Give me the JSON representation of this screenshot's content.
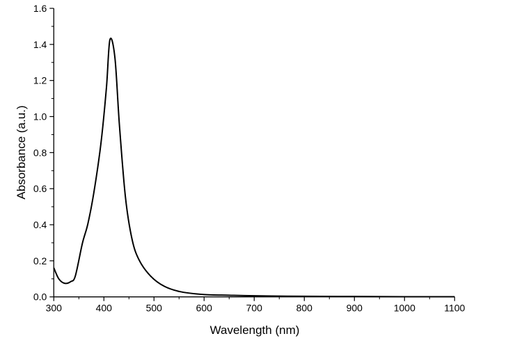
{
  "chart_data": {
    "type": "line",
    "title": "",
    "xlabel": "Wavelength (nm)",
    "ylabel": "Absorbance (a.u.)",
    "xlim": [
      300,
      1100
    ],
    "ylim": [
      0.0,
      1.6
    ],
    "xticks": [
      "300",
      "400",
      "500",
      "600",
      "700",
      "800",
      "900",
      "1000",
      "1100"
    ],
    "yticks": [
      "0.0",
      "0.2",
      "0.4",
      "0.6",
      "0.8",
      "1.0",
      "1.2",
      "1.4",
      "1.6"
    ],
    "grid": false,
    "series": [
      {
        "name": "Absorbance",
        "color": "#000000",
        "x": [
          300,
          310,
          322,
          334,
          343,
          357,
          368,
          380,
          394,
          405,
          412,
          422,
          431,
          443,
          456,
          470,
          493,
          521,
          554,
          600,
          650,
          700,
          800,
          900,
          1000,
          1100
        ],
        "y": [
          0.161,
          0.1,
          0.075,
          0.085,
          0.116,
          0.296,
          0.405,
          0.579,
          0.849,
          1.158,
          1.426,
          1.326,
          0.952,
          0.553,
          0.322,
          0.206,
          0.116,
          0.058,
          0.028,
          0.013,
          0.009,
          0.006,
          0.003,
          0.002,
          0.001,
          0.001
        ]
      }
    ]
  }
}
